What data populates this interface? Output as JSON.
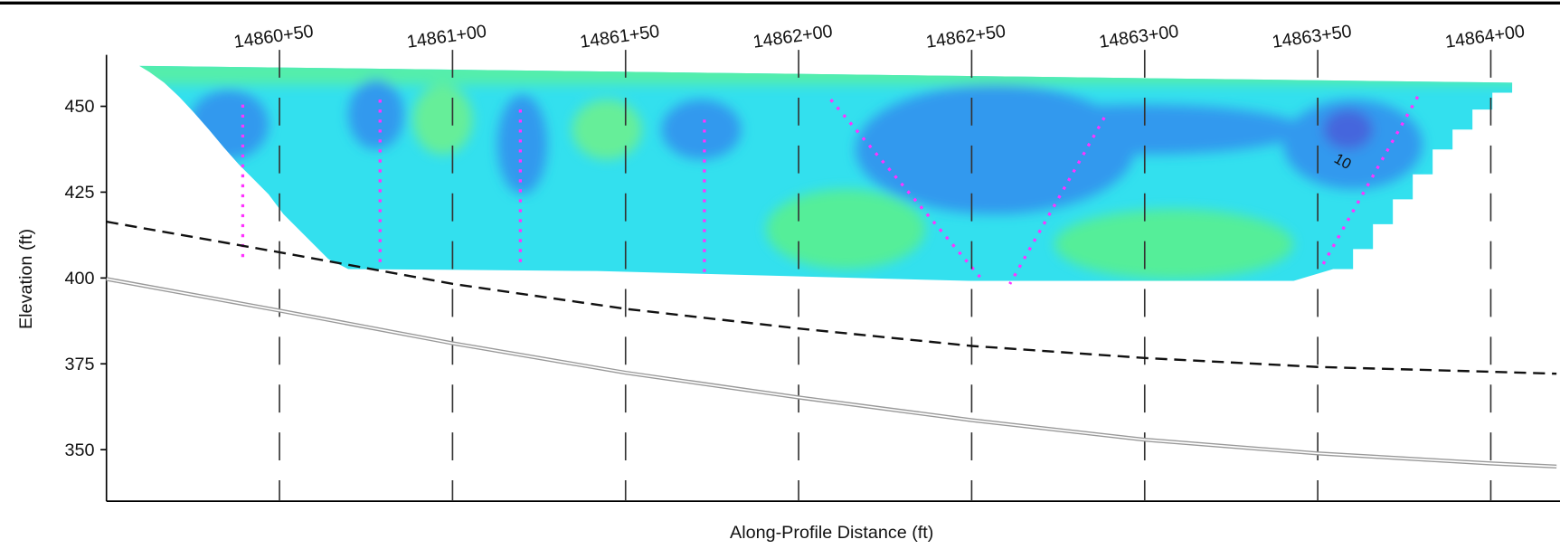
{
  "chart_data": {
    "type": "line",
    "x_label": "Along-Profile Distance (ft)",
    "y_label": "Elevation (ft)",
    "xlim": [
      1486000,
      1486420
    ],
    "ylim": [
      335,
      465
    ],
    "xticks": [
      {
        "value": 1486050,
        "label": "14860+50"
      },
      {
        "value": 1486100,
        "label": "14861+00"
      },
      {
        "value": 1486150,
        "label": "14861+50"
      },
      {
        "value": 1486200,
        "label": "14862+00"
      },
      {
        "value": 1486250,
        "label": "14862+50"
      },
      {
        "value": 1486300,
        "label": "14863+00"
      },
      {
        "value": 1486350,
        "label": "14863+50"
      },
      {
        "value": 1486400,
        "label": "14864+00"
      }
    ],
    "yticks": [
      350,
      375,
      400,
      425,
      450
    ],
    "x": [
      1486000,
      1486050,
      1486100,
      1486150,
      1486200,
      1486250,
      1486300,
      1486350,
      1486400,
      1486419
    ],
    "series": [
      {
        "color": "#111111",
        "line_style": "dashed",
        "values": [
          416.4,
          407.5,
          398.3,
          391,
          385.3,
          380.2,
          376.7,
          374.1,
          372.7,
          372.1
        ]
      },
      {
        "color": "#999999",
        "line_style": "double",
        "values": [
          399.7,
          390.5,
          381,
          372.4,
          365.2,
          358.6,
          352.9,
          348.9,
          346,
          345.1
        ]
      }
    ],
    "annotations": [
      "10"
    ]
  }
}
